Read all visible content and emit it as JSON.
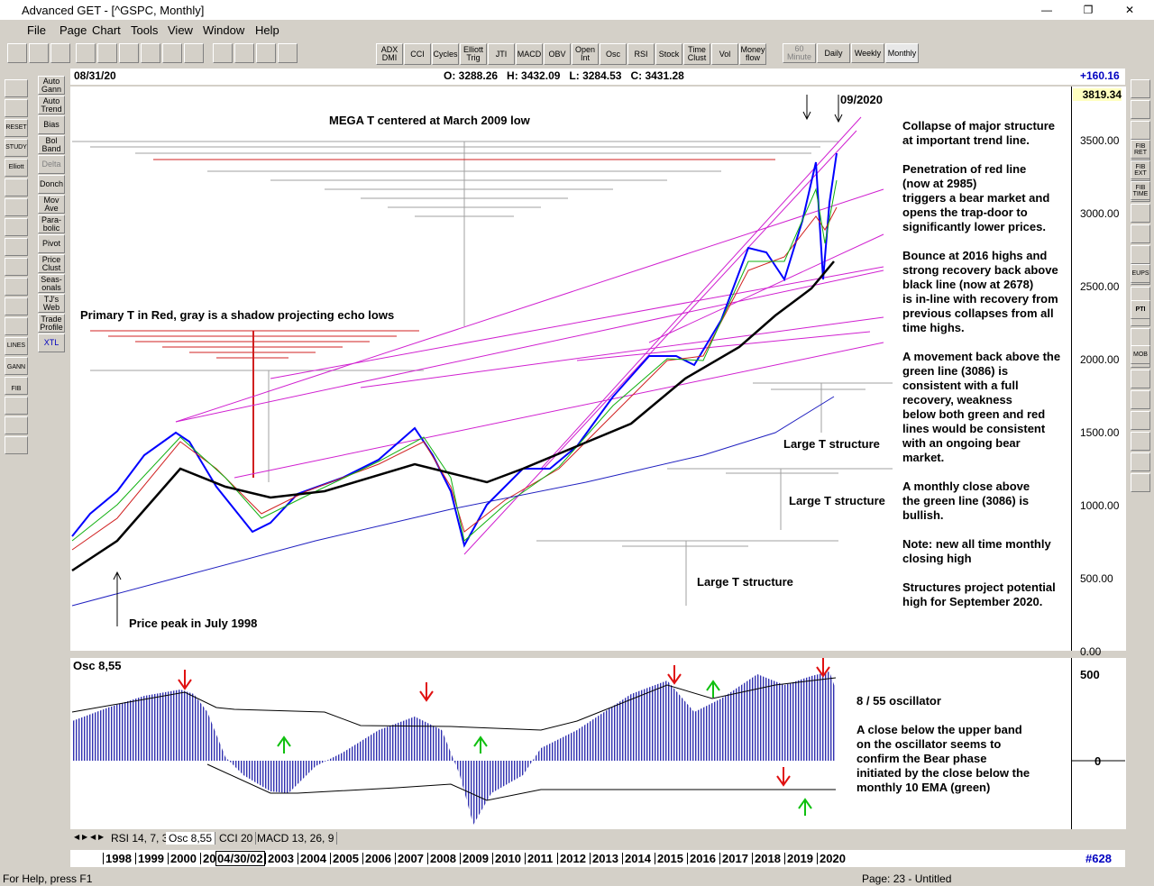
{
  "window": {
    "title": "Advanced GET - [^GSPC, Monthly]"
  },
  "menu": [
    "File",
    "Page",
    "Chart",
    "Tools",
    "View",
    "Window",
    "Help"
  ],
  "toolbar": {
    "studies": [
      "ADX\nDMI",
      "CCI",
      "Cycles",
      "Elliott\nTrig",
      "JTI",
      "MACD",
      "OBV",
      "Open\nInt",
      "Osc",
      "RSI",
      "Stock",
      "Time\nClust",
      "Vol",
      "Money\nflow"
    ],
    "periods": [
      "60\nMinute",
      "Daily",
      "Weekly",
      "Monthly"
    ]
  },
  "left_tools": [
    "Auto\nGann",
    "Auto\nTrend",
    "Bias",
    "Bol\nBand",
    "Delta",
    "Donch",
    "Mov\nAve",
    "Para-\nbolic",
    "Pivot",
    "Price\nClust",
    "Seas-\nonals",
    "TJ's\nWeb",
    "Trade\nProfile",
    "XTL"
  ],
  "left_icons": [
    "RESET",
    "STUDY",
    "Elliott",
    "LINES",
    "GANN",
    "FIB"
  ],
  "right_icons": [
    "FIB\nRET",
    "FIB\nEXT",
    "FIB\nTIME",
    "EUPS",
    "PTI",
    "MOB"
  ],
  "chart": {
    "date": "08/31/20",
    "ohlc": "O: 3288.26   H: 3432.09   L: 3284.53   C: 3431.28",
    "change": "+160.16",
    "last": "3819.34",
    "price_ticks": [
      "3500.00",
      "3000.00",
      "2500.00",
      "2000.00",
      "1500.00",
      "1000.00",
      "500.00",
      "0.00"
    ],
    "marker": "09/2020",
    "annotations": [
      "MEGA T centered at March 2009 low",
      "Primary T in Red, gray is a shadow projecting echo lows",
      "Large T structure",
      "Large T structure",
      "Large T structure",
      "Price peak in July 1998"
    ],
    "notes": [
      [
        "Collapse of major structure",
        "at important trend line."
      ],
      [
        "Penetration of red line",
        "(now at 2985)",
        "triggers a bear market and",
        "opens the trap-door to",
        "significantly lower prices."
      ],
      [
        "Bounce at 2016 highs and",
        "strong recovery back above",
        "black line (now at 2678)",
        "is in-line with recovery from",
        "previous collapses from all",
        "time highs."
      ],
      [
        "A movement back above the",
        "green line (3086) is",
        "consistent with a full",
        "recovery, weakness",
        "below both green and red",
        "lines would be consistent",
        "with an ongoing bear",
        "market."
      ],
      [
        "A monthly close above",
        "the green line (3086) is",
        "bullish."
      ],
      [
        "Note: new all time monthly",
        "closing high"
      ],
      [
        "Structures project potential",
        "high for September 2020."
      ]
    ]
  },
  "oscillator": {
    "label": "Osc 8,55",
    "ticks": [
      "500",
      "0"
    ],
    "notes": [
      [
        "8 / 55 oscillator"
      ],
      [
        "A close below the upper band",
        "on the oscillator seems to",
        "confirm the Bear phase",
        "initiated by the close below the",
        "monthly 10 EMA (green)"
      ]
    ]
  },
  "tabs": [
    "RSI 14, 7, 3",
    "Osc 8,55",
    "CCI 20",
    "MACD 13, 26, 9"
  ],
  "date_axis": {
    "years": [
      "1998",
      "1999",
      "2000",
      "20",
      "2003",
      "2004",
      "2005",
      "2006",
      "2007",
      "2008",
      "2009",
      "2010",
      "2011",
      "2012",
      "2013",
      "2014",
      "2015",
      "2016",
      "2017",
      "2018",
      "2019",
      "2020"
    ],
    "cursor": "04/30/02",
    "bars": "#628"
  },
  "status": {
    "help": "For Help, press F1",
    "page": "Page: 23 - Untitled"
  }
}
